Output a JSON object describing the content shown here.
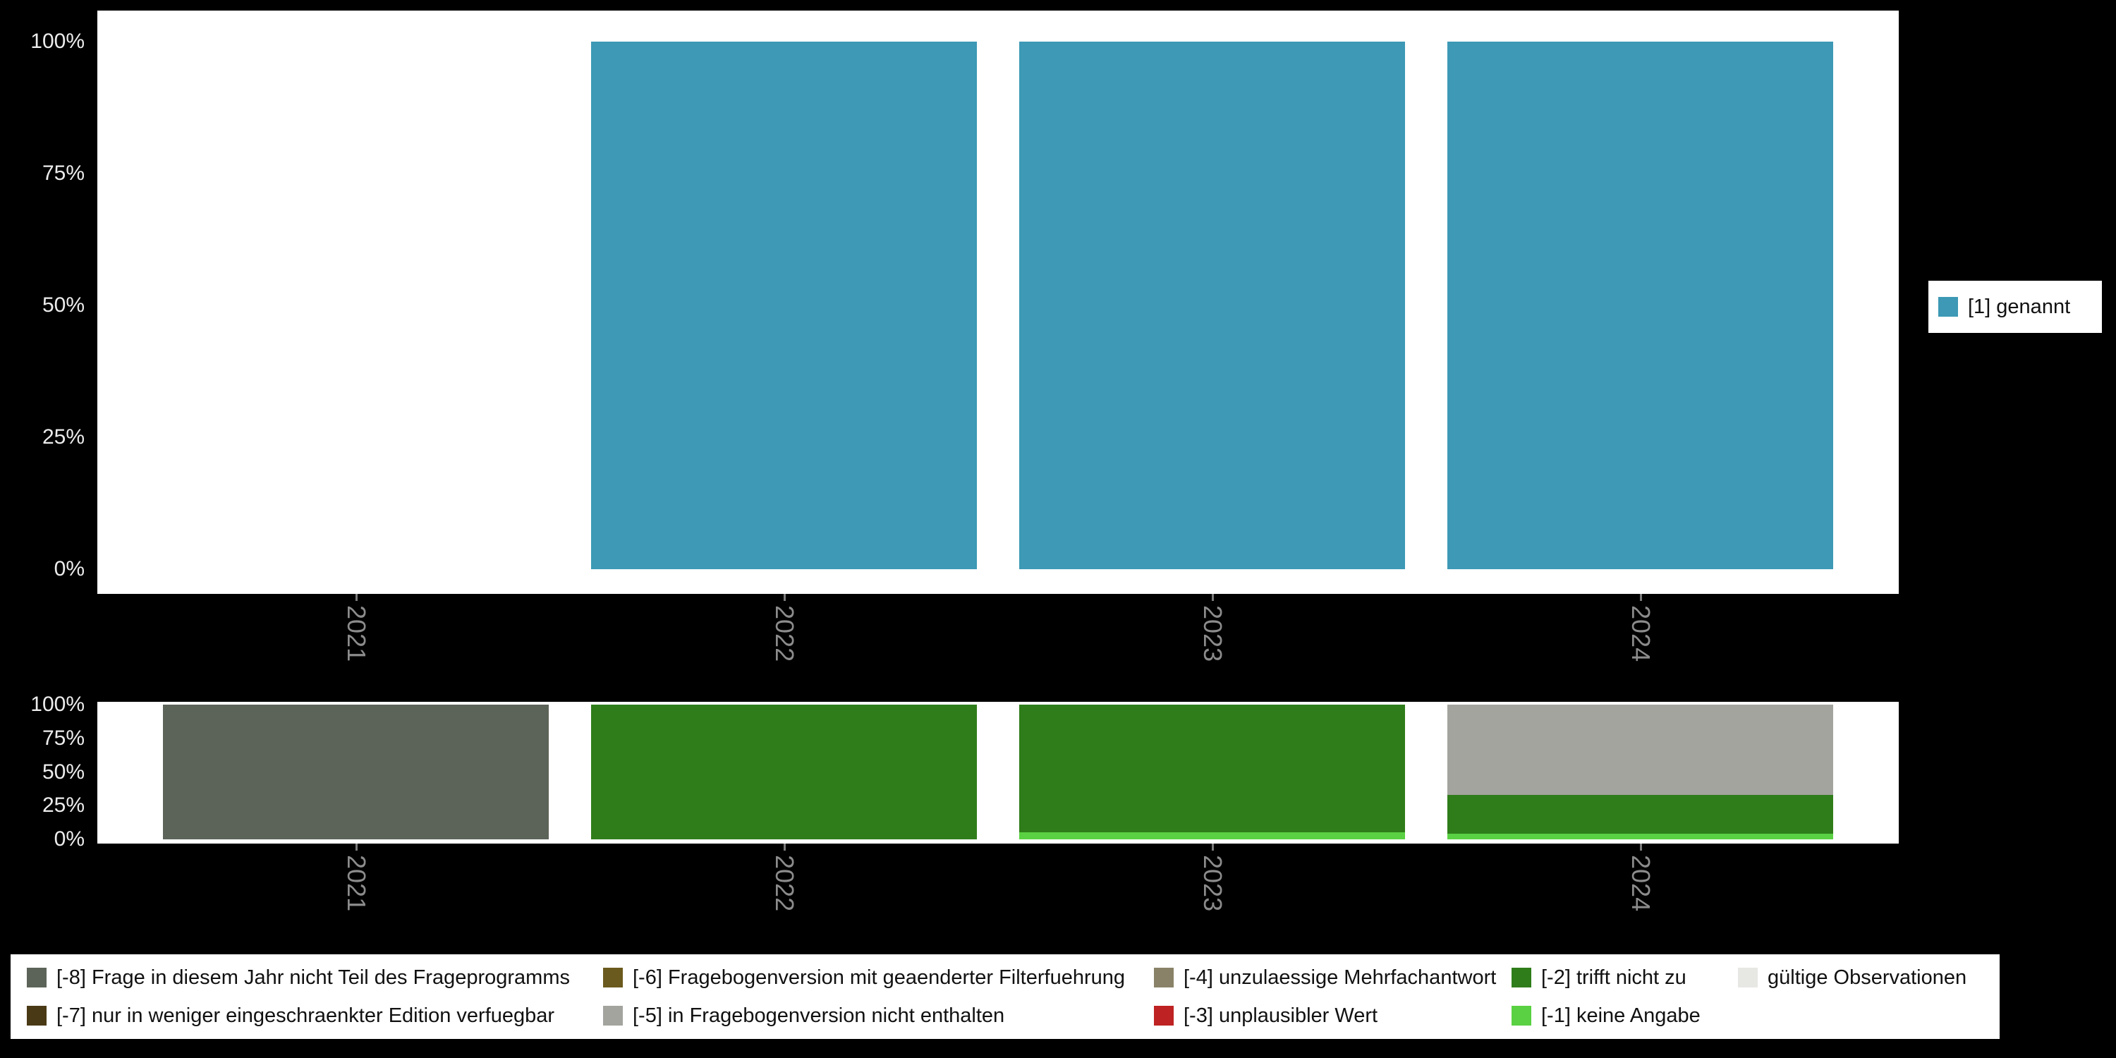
{
  "figure": {
    "background_color": "#000000",
    "panel_color": "#ffffff",
    "ytick_text_color": "#ececec",
    "xtick_text_color": "#8c8c8c"
  },
  "chart_data": [
    {
      "id": "frequencies-by-year",
      "type": "bar",
      "stacked": true,
      "title": "",
      "xlabel": "",
      "ylabel": "",
      "categories": [
        "2021",
        "2022",
        "2023",
        "2024"
      ],
      "series": [
        {
          "name": "[1] genannt",
          "color": "#3d99b5",
          "values": [
            0,
            100,
            100,
            100
          ]
        }
      ],
      "ylim": [
        0,
        100
      ],
      "yticks": [
        100,
        75,
        50,
        25,
        0
      ],
      "ytick_suffix": "%",
      "grid": false,
      "legend_position": "right",
      "legend_items": [
        {
          "label": "[1] genannt",
          "color": "#3d99b5"
        }
      ]
    },
    {
      "id": "missing-values-by-year",
      "type": "bar",
      "stacked": true,
      "title": "",
      "xlabel": "",
      "ylabel": "",
      "categories": [
        "2021",
        "2022",
        "2023",
        "2024"
      ],
      "series": [
        {
          "name": "[-5] in Fragebogenversion nicht enthalten",
          "color": "#a3a49e",
          "values": [
            0,
            0,
            0,
            67
          ]
        },
        {
          "name": "[-8] Frage in diesem Jahr nicht Teil des Frageprogramms",
          "color": "#5c6459",
          "values": [
            100,
            0,
            0,
            0
          ]
        },
        {
          "name": "[-2] trifft nicht zu",
          "color": "#2f7d1a",
          "values": [
            0,
            100,
            95,
            29
          ]
        },
        {
          "name": "[-1] keine Angabe",
          "color": "#5ad142",
          "values": [
            0,
            0,
            5,
            4
          ]
        }
      ],
      "ylim": [
        0,
        100
      ],
      "yticks": [
        100,
        75,
        50,
        25,
        0
      ],
      "ytick_suffix": "%",
      "grid": false,
      "legend_position": "bottom",
      "legend_columns": [
        [
          {
            "label": "[-8] Frage in diesem Jahr nicht Teil des Frageprogramms",
            "color": "#5c6459"
          },
          {
            "label": "[-7] nur in weniger eingeschraenkter Edition verfuegbar",
            "color": "#4a3915"
          }
        ],
        [
          {
            "label": "[-6] Fragebogenversion mit geaenderter Filterfuehrung",
            "color": "#6b5a1e"
          },
          {
            "label": "[-5] in Fragebogenversion nicht enthalten",
            "color": "#a3a49e"
          }
        ],
        [
          {
            "label": "[-4] unzulaessige Mehrfachantwort",
            "color": "#8a8268"
          },
          {
            "label": "[-3] unplausibler Wert",
            "color": "#bf2222"
          }
        ],
        [
          {
            "label": "[-2] trifft nicht zu",
            "color": "#2f7d1a"
          },
          {
            "label": "[-1] keine Angabe",
            "color": "#5ad142"
          }
        ],
        [
          {
            "label": "gültige Observationen",
            "color": "#e7e7e3"
          }
        ]
      ]
    }
  ]
}
